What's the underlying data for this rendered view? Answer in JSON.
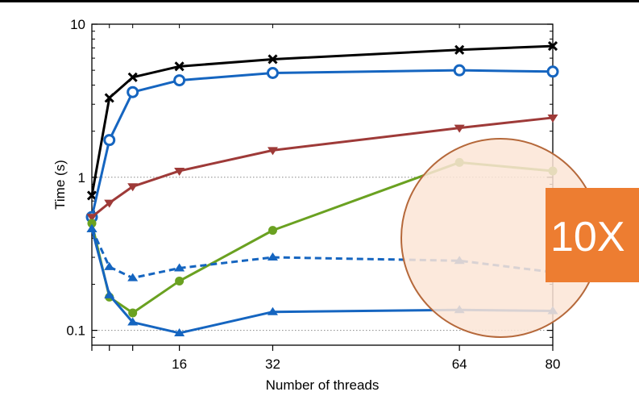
{
  "chart_data": {
    "type": "line",
    "title": "",
    "xlabel": "Number of threads",
    "ylabel": "Time (s)",
    "xlim": [
      1,
      80
    ],
    "ylim": [
      0.08,
      10
    ],
    "yscale": "log",
    "grid": "horizontal dotted at y-ticks",
    "x_ticks": [
      {
        "value": 16,
        "label": "16"
      },
      {
        "value": 32,
        "label": "32"
      },
      {
        "value": 64,
        "label": "64"
      },
      {
        "value": 80,
        "label": "80"
      }
    ],
    "x_minor_ticks": [
      1,
      4,
      8,
      16,
      32,
      64,
      80
    ],
    "y_ticks": [
      {
        "value": 0.1,
        "label": "0.1"
      },
      {
        "value": 1,
        "label": "1"
      },
      {
        "value": 10,
        "label": "10"
      }
    ],
    "series": [
      {
        "color": "#000000",
        "marker": "x",
        "dash": "solid",
        "x": [
          1,
          4,
          8,
          16,
          32,
          64,
          80
        ],
        "y": [
          0.76,
          3.3,
          4.5,
          5.3,
          5.9,
          6.8,
          7.2
        ]
      },
      {
        "color": "#1565c0",
        "marker": "circle-open",
        "dash": "solid",
        "x": [
          1,
          4,
          8,
          16,
          32,
          64,
          80
        ],
        "y": [
          0.55,
          1.75,
          3.6,
          4.3,
          4.8,
          5.0,
          4.9
        ]
      },
      {
        "color": "#9e3a38",
        "marker": "triangle-down",
        "dash": "solid",
        "x": [
          1,
          4,
          8,
          16,
          32,
          64,
          80
        ],
        "y": [
          0.55,
          0.68,
          0.87,
          1.1,
          1.5,
          2.1,
          2.45
        ]
      },
      {
        "color": "#6aa121",
        "marker": "circle",
        "dash": "solid",
        "x": [
          1,
          4,
          8,
          16,
          32,
          64,
          80
        ],
        "y": [
          0.5,
          0.165,
          0.13,
          0.21,
          0.45,
          1.25,
          1.1
        ]
      },
      {
        "color": "#1565c0",
        "marker": "triangle-up",
        "dash": "dashed",
        "x": [
          1,
          4,
          8,
          16,
          32,
          64,
          80
        ],
        "y": [
          0.46,
          0.26,
          0.22,
          0.255,
          0.3,
          0.285,
          0.24
        ]
      },
      {
        "color": "#1565c0",
        "marker": "triangle-up",
        "dash": "solid",
        "x": [
          1,
          4,
          8,
          16,
          32,
          64,
          80
        ],
        "y": [
          0.46,
          0.17,
          0.113,
          0.096,
          0.132,
          0.136,
          0.134
        ]
      }
    ],
    "annotations": [
      {
        "type": "callout-circle",
        "fill": "#fbe5d6",
        "stroke": "#b5683a"
      },
      {
        "type": "label-box",
        "text": "10X",
        "fill": "#ed7d31",
        "text_color": "#ffffff"
      }
    ]
  }
}
